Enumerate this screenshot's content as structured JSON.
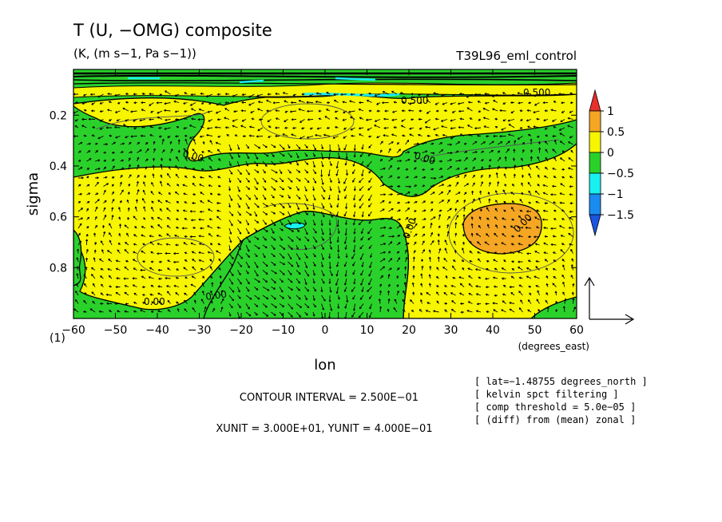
{
  "chart_data": {
    "type": "contour",
    "title": "T (U, −OMG) composite",
    "subtitle": "(K, (m s−1, Pa s−1))",
    "run_label": "T39L96_eml_control",
    "xlabel": "lon",
    "xunits": "(degrees_east)",
    "ylabel": "sigma",
    "corner_label": "(1)",
    "xlim": [
      -60,
      60
    ],
    "ylim": [
      1.0,
      0.02
    ],
    "x_ticks": [
      -60,
      -50,
      -40,
      -30,
      -20,
      -10,
      0,
      10,
      20,
      30,
      40,
      50,
      60
    ],
    "y_ticks": [
      0.2,
      0.4,
      0.6,
      0.8
    ],
    "colorbar": {
      "levels": [
        1,
        0.5,
        0,
        -0.5,
        -1,
        -1.5
      ],
      "labels": [
        "1",
        "0.5",
        "0",
        "−0.5",
        "−1",
        "−1.5"
      ],
      "colors": [
        "#e8302a",
        "#f5a623",
        "#f7f500",
        "#2bd12b",
        "#19f0f0",
        "#1a8cf0",
        "#1a54e0"
      ]
    },
    "contour_labels": [
      "0.00",
      "0.00",
      "0.00",
      "0.00",
      "0.00",
      "0.00",
      "0.500",
      "0.500"
    ],
    "contour_interval": "CONTOUR INTERVAL = 2.500E−01",
    "units_line": "XUNIT = 3.000E+01, YUNIT = 4.000E−01",
    "notes": [
      "[ lat=−1.48755 degrees_north ]",
      "[ kelvin spct filtering ]",
      "[ comp threshold = 5.0e−05 ]",
      "[ (diff) from (mean) zonal ]"
    ]
  }
}
